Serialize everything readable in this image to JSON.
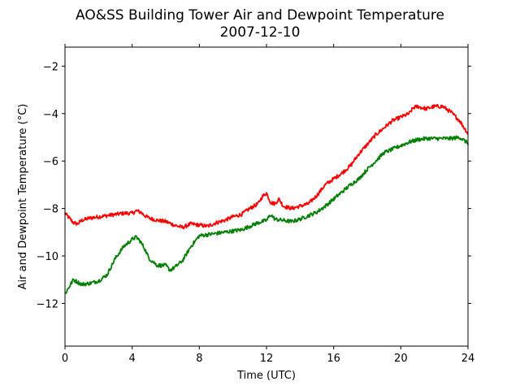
{
  "chart_data": {
    "type": "line",
    "title": "AO&SS Building Tower Air and Dewpoint Temperature",
    "subtitle": "2007-12-10",
    "xlabel": "Time (UTC)",
    "ylabel": "Air and Dewpoint Temperature (°C)",
    "xlim": [
      0,
      24
    ],
    "ylim": [
      -13.8,
      -1.2
    ],
    "x_ticks": [
      0,
      4,
      8,
      12,
      16,
      20,
      24
    ],
    "y_ticks": [
      -12,
      -10,
      -8,
      -6,
      -4,
      -2
    ],
    "y_tick_labels": [
      "−12",
      "−10",
      "−8",
      "−6",
      "−4",
      "−2"
    ],
    "grid": false,
    "legend": "none",
    "series": [
      {
        "color": "#ff0000",
        "x": [
          0,
          0.25,
          0.5,
          0.75,
          1,
          1.5,
          2,
          2.5,
          3,
          3.5,
          4,
          4.25,
          4.5,
          4.75,
          5,
          5.5,
          6,
          6.5,
          6.75,
          7,
          7.5,
          8,
          8.5,
          9,
          9.5,
          10,
          10.5,
          11,
          11.5,
          11.75,
          12,
          12.25,
          12.5,
          12.75,
          13,
          13.5,
          14,
          14.5,
          15,
          15.5,
          16,
          16.5,
          17,
          17.5,
          18,
          18.5,
          19,
          19.5,
          20,
          20.5,
          20.75,
          21,
          21.5,
          22,
          22.5,
          23,
          23.5,
          24
        ],
        "y": [
          -8.2,
          -8.4,
          -8.6,
          -8.65,
          -8.5,
          -8.4,
          -8.35,
          -8.3,
          -8.25,
          -8.2,
          -8.2,
          -8.1,
          -8.15,
          -8.3,
          -8.4,
          -8.5,
          -8.55,
          -8.7,
          -8.75,
          -8.8,
          -8.65,
          -8.7,
          -8.75,
          -8.6,
          -8.5,
          -8.35,
          -8.25,
          -8.0,
          -7.8,
          -7.5,
          -7.35,
          -7.75,
          -7.8,
          -7.6,
          -7.9,
          -8.0,
          -7.9,
          -7.8,
          -7.45,
          -7.0,
          -6.75,
          -6.5,
          -6.2,
          -5.7,
          -5.3,
          -4.9,
          -4.6,
          -4.3,
          -4.15,
          -4.0,
          -3.75,
          -3.7,
          -3.8,
          -3.7,
          -3.7,
          -3.95,
          -4.3,
          -4.85
        ]
      },
      {
        "color": "#008000",
        "x": [
          0,
          0.25,
          0.5,
          0.75,
          1,
          1.5,
          2,
          2.5,
          3,
          3.5,
          4,
          4.25,
          4.5,
          4.75,
          5,
          5.5,
          6,
          6.25,
          6.5,
          7,
          7.5,
          8,
          8.5,
          9,
          9.5,
          10,
          10.5,
          11,
          11.5,
          12,
          12.25,
          12.5,
          13,
          13.5,
          14,
          14.5,
          15,
          15.5,
          16,
          16.5,
          17,
          17.5,
          18,
          18.5,
          19,
          19.5,
          20,
          20.5,
          21,
          21.5,
          22,
          22.5,
          23,
          23.5,
          24
        ],
        "y": [
          -11.6,
          -11.3,
          -11.0,
          -11.1,
          -11.2,
          -11.15,
          -11.05,
          -10.8,
          -10.1,
          -9.6,
          -9.3,
          -9.2,
          -9.4,
          -9.7,
          -10.1,
          -10.4,
          -10.4,
          -10.6,
          -10.5,
          -10.2,
          -9.6,
          -9.15,
          -9.1,
          -9.05,
          -9.0,
          -8.95,
          -8.9,
          -8.75,
          -8.6,
          -8.5,
          -8.25,
          -8.45,
          -8.5,
          -8.55,
          -8.45,
          -8.3,
          -8.15,
          -7.9,
          -7.6,
          -7.3,
          -7.0,
          -6.75,
          -6.35,
          -6.0,
          -5.65,
          -5.5,
          -5.35,
          -5.2,
          -5.1,
          -5.05,
          -5.05,
          -5.05,
          -5.05,
          -5.0,
          -5.25
        ]
      }
    ]
  }
}
